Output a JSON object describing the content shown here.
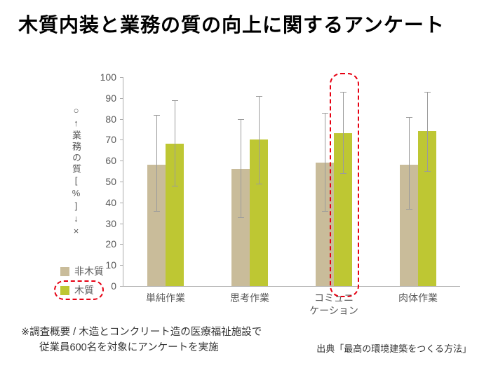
{
  "title": "木質内装と業務の質の向上に関するアンケート",
  "chart_data": {
    "type": "bar",
    "title": "木質内装と業務の質の向上に関するアンケート",
    "categories": [
      "単純作業",
      "思考作業",
      "コミュニ\nケーション",
      "肉体作業"
    ],
    "series": [
      {
        "name": "非木質",
        "color": "#c9bc9a",
        "values": [
          58,
          56,
          59,
          58
        ],
        "error_low": [
          36,
          33,
          36,
          37
        ],
        "error_high": [
          82,
          80,
          83,
          81
        ]
      },
      {
        "name": "木質",
        "color": "#bec733",
        "values": [
          68,
          70,
          73,
          74
        ],
        "error_low": [
          48,
          49,
          54,
          55
        ],
        "error_high": [
          89,
          91,
          93,
          93
        ]
      }
    ],
    "ylim": [
      0,
      100
    ],
    "ytick_step": 10,
    "ylabel_vertical": "○↑業務の質[%]↓×",
    "grid": false,
    "legend_position": "bottom-left",
    "highlight": {
      "category_index": 2,
      "series_index": 1,
      "color": "#e60012"
    }
  },
  "footnote": {
    "line1": "※調査概要 / 木造とコンクリート造の医療福祉施設で",
    "line2": "従業員600名を対象にアンケートを実施"
  },
  "source": "出典「最高の環境建築をつくる方法」"
}
